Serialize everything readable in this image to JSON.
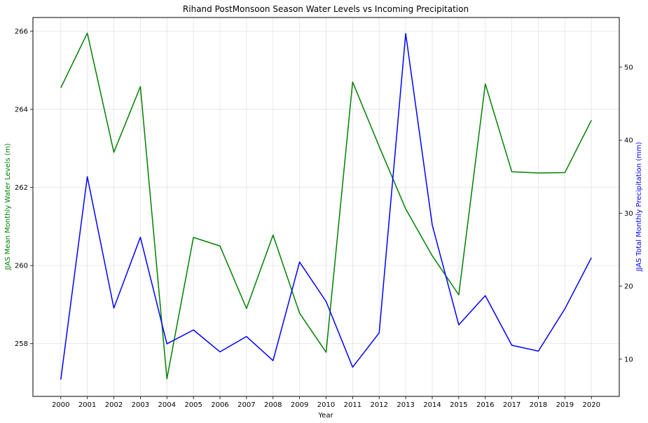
{
  "chart_data": {
    "type": "line",
    "title": "Rihand PostMonsoon Season Water Levels vs Incoming Precipitation",
    "xlabel": "Year",
    "ylabel_left": "JJAS Mean Monthly Water Levels (m)",
    "ylabel_right": "JJAS Total Monthly Precipitation (mm)",
    "grid": true,
    "x": [
      2000,
      2001,
      2002,
      2003,
      2004,
      2005,
      2006,
      2007,
      2008,
      2009,
      2010,
      2011,
      2012,
      2013,
      2014,
      2015,
      2016,
      2017,
      2018,
      2019,
      2020
    ],
    "ylim_left": [
      256.65,
      266.35
    ],
    "ylim_right": [
      4.9,
      56.8
    ],
    "yticks_left": [
      258,
      260,
      262,
      264,
      266
    ],
    "yticks_right": [
      10,
      20,
      30,
      40,
      50
    ],
    "series": [
      {
        "axis": "left",
        "color": "#008000",
        "values": [
          264.55,
          265.95,
          262.9,
          264.58,
          257.1,
          260.72,
          260.5,
          258.9,
          260.78,
          258.78,
          257.78,
          264.7,
          263.05,
          261.45,
          260.25,
          259.25,
          264.65,
          262.4,
          262.37,
          262.38,
          263.72
        ]
      },
      {
        "axis": "right",
        "color": "#0000ff",
        "values": [
          7.2,
          35.0,
          17.0,
          26.7,
          12.1,
          14.0,
          11.0,
          13.1,
          9.8,
          23.3,
          17.9,
          8.9,
          13.6,
          54.6,
          28.4,
          14.7,
          18.7,
          11.9,
          11.1,
          16.9,
          23.9
        ]
      }
    ]
  }
}
